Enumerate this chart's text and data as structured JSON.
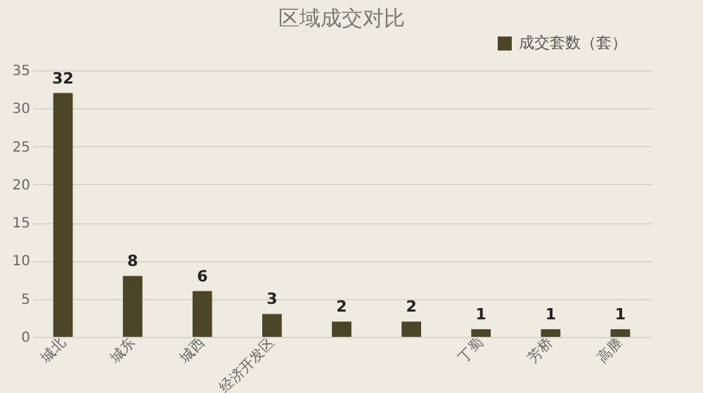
{
  "chart_data": {
    "type": "bar",
    "title": "区域成交对比",
    "categories": [
      "城北",
      "城东",
      "城西",
      "经济开发区",
      null,
      null,
      "丁蜀",
      "芳桥",
      "高塍"
    ],
    "series": [
      {
        "name": "成交套数（套）",
        "color": "#4d4527",
        "values": [
          32,
          8,
          6,
          3,
          2,
          2,
          1,
          1,
          1
        ]
      }
    ],
    "ylim": [
      0,
      35
    ],
    "yticks": [
      0,
      5,
      10,
      15,
      20,
      25,
      30,
      35
    ],
    "grid": "y",
    "legend": "top right",
    "data_labels": true
  }
}
